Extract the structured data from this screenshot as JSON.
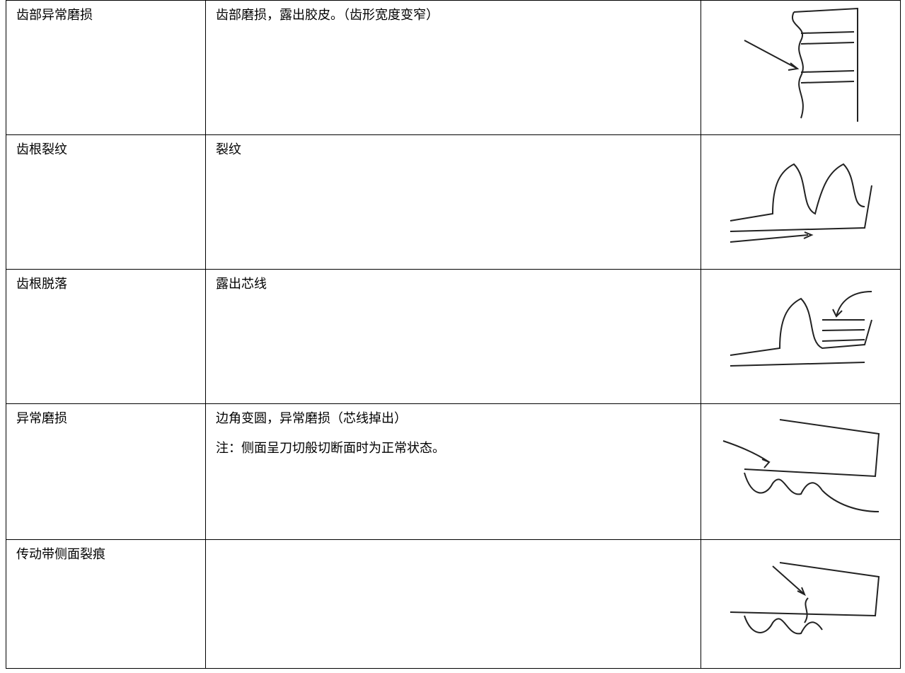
{
  "table": {
    "rows": [
      {
        "defect": "齿部异常磨损",
        "description": [
          "齿部磨损，露出胶皮。（齿形宽度变窄）"
        ]
      },
      {
        "defect": "齿根裂纹",
        "description": [
          "裂纹"
        ]
      },
      {
        "defect": "齿根脱落",
        "description": [
          "露出芯线"
        ]
      },
      {
        "defect": "异常磨损",
        "description": [
          "边角变圆，异常磨损（芯线掉出）",
          "注：侧面呈刀切般切断面时为正常状态。"
        ]
      },
      {
        "defect": "传动带侧面裂痕"
      }
    ]
  }
}
